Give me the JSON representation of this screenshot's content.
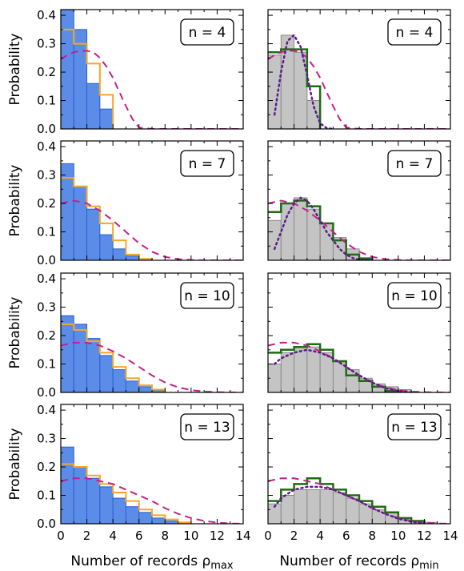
{
  "chart_data": [
    {
      "type": "bar",
      "panel": "max-n4",
      "label": "n = 4",
      "ylabel": "Probability",
      "xlabel": "",
      "xlim": [
        0,
        14
      ],
      "ylim": [
        0,
        0.42
      ],
      "bins": [
        0,
        1,
        2,
        3,
        4,
        5,
        6,
        7,
        8,
        9,
        10,
        11,
        12,
        13
      ],
      "histogram": [
        0.42,
        0.35,
        0.16,
        0.07,
        0,
        0,
        0,
        0,
        0,
        0,
        0,
        0,
        0,
        0
      ],
      "step_series": [
        0.35,
        0.3,
        0.23,
        0.12,
        0,
        0,
        0,
        0,
        0,
        0,
        0,
        0,
        0,
        0
      ],
      "dashed_curve": {
        "x": [
          0,
          0.5,
          1,
          1.5,
          2,
          2.5,
          3,
          3.5,
          4,
          4.5,
          5,
          5.5,
          6,
          7,
          8,
          10,
          12,
          14
        ],
        "y": [
          0.245,
          0.26,
          0.27,
          0.275,
          0.275,
          0.27,
          0.25,
          0.22,
          0.18,
          0.13,
          0.08,
          0.035,
          0.005,
          0,
          0,
          0,
          0,
          0
        ]
      }
    },
    {
      "type": "bar",
      "panel": "min-n4",
      "label": "n = 4",
      "xlim": [
        0,
        14
      ],
      "ylim": [
        0,
        0.42
      ],
      "bins": [
        0,
        1,
        2,
        3,
        4,
        5,
        6,
        7,
        8,
        9,
        10,
        11,
        12,
        13
      ],
      "histogram": [
        0.26,
        0.33,
        0.27,
        0.1,
        0,
        0,
        0,
        0,
        0,
        0,
        0,
        0,
        0,
        0
      ],
      "step_series": [
        0.27,
        0.28,
        0.28,
        0.15,
        0,
        0,
        0,
        0,
        0,
        0,
        0,
        0,
        0,
        0
      ],
      "dashed_curve": {
        "x": [
          0,
          0.5,
          1,
          1.5,
          2,
          2.5,
          3,
          3.5,
          4,
          4.5,
          5,
          5.5,
          6,
          7,
          8,
          10,
          12,
          14
        ],
        "y": [
          0.245,
          0.26,
          0.27,
          0.275,
          0.275,
          0.27,
          0.25,
          0.22,
          0.18,
          0.13,
          0.08,
          0.035,
          0.005,
          0,
          0,
          0,
          0,
          0
        ]
      },
      "dotted_curve": {
        "x": [
          0.5,
          1,
          1.5,
          2,
          2.5,
          3,
          3.5,
          4,
          4.5,
          5
        ],
        "y": [
          0.05,
          0.2,
          0.31,
          0.33,
          0.29,
          0.19,
          0.08,
          0.02,
          0.003,
          0
        ]
      }
    },
    {
      "type": "bar",
      "panel": "max-n7",
      "label": "n = 7",
      "ylabel": "Probability",
      "xlim": [
        0,
        14
      ],
      "ylim": [
        0,
        0.42
      ],
      "bins": [
        0,
        1,
        2,
        3,
        4,
        5,
        6,
        7,
        8,
        9,
        10,
        11,
        12,
        13
      ],
      "histogram": [
        0.34,
        0.26,
        0.18,
        0.09,
        0.04,
        0.015,
        0.005,
        0,
        0,
        0,
        0,
        0,
        0,
        0
      ],
      "step_series": [
        0.29,
        0.26,
        0.19,
        0.13,
        0.07,
        0.02,
        0.005,
        0,
        0,
        0,
        0,
        0,
        0,
        0
      ],
      "dashed_curve": {
        "x": [
          0,
          1,
          2,
          3,
          4,
          5,
          6,
          7,
          8,
          9,
          10,
          11,
          12,
          14
        ],
        "y": [
          0.2,
          0.21,
          0.2,
          0.175,
          0.14,
          0.1,
          0.06,
          0.03,
          0.012,
          0.004,
          0.001,
          0,
          0,
          0
        ]
      }
    },
    {
      "type": "bar",
      "panel": "min-n7",
      "label": "n = 7",
      "xlim": [
        0,
        14
      ],
      "ylim": [
        0,
        0.42
      ],
      "bins": [
        0,
        1,
        2,
        3,
        4,
        5,
        6,
        7,
        8,
        9,
        10,
        11,
        12,
        13
      ],
      "histogram": [
        0.14,
        0.2,
        0.22,
        0.18,
        0.13,
        0.08,
        0.04,
        0.01,
        0,
        0,
        0,
        0,
        0,
        0
      ],
      "step_series": [
        0.17,
        0.2,
        0.21,
        0.19,
        0.13,
        0.07,
        0.02,
        0.005,
        0,
        0,
        0,
        0,
        0,
        0
      ],
      "dashed_curve": {
        "x": [
          0,
          1,
          2,
          3,
          4,
          5,
          6,
          7,
          8,
          9,
          10,
          11,
          12,
          14
        ],
        "y": [
          0.2,
          0.21,
          0.2,
          0.175,
          0.14,
          0.1,
          0.06,
          0.03,
          0.012,
          0.004,
          0.001,
          0,
          0,
          0
        ]
      },
      "dotted_curve": {
        "x": [
          0.5,
          1,
          1.5,
          2,
          2.5,
          3,
          3.5,
          4,
          4.5,
          5,
          5.5,
          6,
          6.5,
          7,
          8
        ],
        "y": [
          0.04,
          0.1,
          0.16,
          0.2,
          0.22,
          0.21,
          0.18,
          0.14,
          0.1,
          0.07,
          0.04,
          0.02,
          0.008,
          0.002,
          0
        ]
      }
    },
    {
      "type": "bar",
      "panel": "max-n10",
      "label": "n = 10",
      "ylabel": "Probability",
      "xlim": [
        0,
        14
      ],
      "ylim": [
        0,
        0.42
      ],
      "bins": [
        0,
        1,
        2,
        3,
        4,
        5,
        6,
        7,
        8,
        9,
        10,
        11,
        12,
        13
      ],
      "histogram": [
        0.27,
        0.24,
        0.19,
        0.13,
        0.08,
        0.04,
        0.02,
        0.008,
        0,
        0,
        0,
        0,
        0,
        0
      ],
      "step_series": [
        0.24,
        0.22,
        0.18,
        0.14,
        0.09,
        0.05,
        0.025,
        0.01,
        0,
        0,
        0,
        0,
        0,
        0
      ],
      "dashed_curve": {
        "x": [
          0,
          1,
          2,
          3,
          4,
          5,
          6,
          7,
          8,
          9,
          10,
          11,
          12,
          13,
          14
        ],
        "y": [
          0.165,
          0.175,
          0.175,
          0.165,
          0.145,
          0.12,
          0.09,
          0.06,
          0.035,
          0.018,
          0.008,
          0.003,
          0.001,
          0,
          0
        ]
      }
    },
    {
      "type": "bar",
      "panel": "min-n10",
      "label": "n = 10",
      "xlim": [
        0,
        14
      ],
      "ylim": [
        0,
        0.42
      ],
      "bins": [
        0,
        1,
        2,
        3,
        4,
        5,
        6,
        7,
        8,
        9,
        10,
        11,
        12,
        13
      ],
      "histogram": [
        0.1,
        0.14,
        0.16,
        0.16,
        0.14,
        0.11,
        0.08,
        0.05,
        0.03,
        0.02,
        0.01,
        0,
        0,
        0
      ],
      "step_series": [
        0.14,
        0.15,
        0.16,
        0.17,
        0.15,
        0.11,
        0.06,
        0.04,
        0.02,
        0.005,
        0,
        0,
        0,
        0
      ],
      "dashed_curve": {
        "x": [
          0,
          1,
          2,
          3,
          4,
          5,
          6,
          7,
          8,
          9,
          10,
          11,
          12,
          13,
          14
        ],
        "y": [
          0.165,
          0.175,
          0.175,
          0.165,
          0.145,
          0.12,
          0.09,
          0.06,
          0.035,
          0.018,
          0.008,
          0.003,
          0.001,
          0,
          0
        ]
      },
      "dotted_curve": {
        "x": [
          0.5,
          1,
          2,
          3,
          4,
          5,
          6,
          7,
          8,
          9,
          10,
          11
        ],
        "y": [
          0.1,
          0.12,
          0.14,
          0.15,
          0.14,
          0.12,
          0.09,
          0.06,
          0.035,
          0.015,
          0.005,
          0
        ]
      }
    },
    {
      "type": "bar",
      "panel": "max-n13",
      "label": "n = 13",
      "ylabel": "Probability",
      "xlabel": "Number of records ρ",
      "xlabel_subscript": "max",
      "xlim": [
        0,
        14
      ],
      "ylim": [
        0,
        0.42
      ],
      "xticks": [
        0,
        2,
        4,
        6,
        8,
        10,
        12,
        14
      ],
      "bins": [
        0,
        1,
        2,
        3,
        4,
        5,
        6,
        7,
        8,
        9,
        10,
        11,
        12,
        13
      ],
      "histogram": [
        0.27,
        0.2,
        0.16,
        0.13,
        0.09,
        0.06,
        0.04,
        0.02,
        0.01,
        0.005,
        0,
        0,
        0,
        0
      ],
      "step_series": [
        0.21,
        0.2,
        0.17,
        0.14,
        0.11,
        0.08,
        0.05,
        0.03,
        0.015,
        0.005,
        0,
        0,
        0,
        0
      ],
      "dashed_curve": {
        "x": [
          0,
          1,
          2,
          3,
          4,
          5,
          6,
          7,
          8,
          9,
          10,
          11,
          12,
          13,
          14
        ],
        "y": [
          0.15,
          0.16,
          0.16,
          0.15,
          0.14,
          0.12,
          0.1,
          0.08,
          0.055,
          0.035,
          0.02,
          0.01,
          0.004,
          0.001,
          0
        ]
      }
    },
    {
      "type": "bar",
      "panel": "min-n13",
      "label": "n = 13",
      "xlabel": "Number of records ρ",
      "xlabel_subscript": "min",
      "xlim": [
        0,
        14
      ],
      "ylim": [
        0,
        0.42
      ],
      "xticks": [
        0,
        2,
        4,
        6,
        8,
        10,
        12,
        14
      ],
      "bins": [
        0,
        1,
        2,
        3,
        4,
        5,
        6,
        7,
        8,
        9,
        10,
        11,
        12,
        13
      ],
      "histogram": [
        0.07,
        0.1,
        0.12,
        0.12,
        0.12,
        0.11,
        0.09,
        0.07,
        0.05,
        0.04,
        0.02,
        0.01,
        0.005,
        0
      ],
      "step_series": [
        0.08,
        0.12,
        0.14,
        0.16,
        0.14,
        0.12,
        0.1,
        0.08,
        0.06,
        0.04,
        0.02,
        0.01,
        0,
        0
      ],
      "dashed_curve": {
        "x": [
          0,
          1,
          2,
          3,
          4,
          5,
          6,
          7,
          8,
          9,
          10,
          11,
          12,
          13,
          14
        ],
        "y": [
          0.15,
          0.16,
          0.16,
          0.15,
          0.14,
          0.12,
          0.1,
          0.08,
          0.055,
          0.035,
          0.02,
          0.01,
          0.004,
          0.001,
          0
        ]
      },
      "dotted_curve": {
        "x": [
          0.5,
          1,
          2,
          3,
          4,
          5,
          6,
          7,
          8,
          9,
          10,
          11,
          12
        ],
        "y": [
          0.06,
          0.09,
          0.12,
          0.13,
          0.13,
          0.12,
          0.1,
          0.08,
          0.055,
          0.035,
          0.018,
          0.007,
          0.002
        ]
      }
    }
  ],
  "y_ticks": [
    "0.0",
    "0.1",
    "0.2",
    "0.3",
    "0.4"
  ],
  "y_tick_values": [
    0,
    0.1,
    0.2,
    0.3,
    0.4
  ],
  "colors": {
    "max_bars_fill": "#5b8de8",
    "max_bars_edge": "#2a5fd0",
    "min_bars_fill": "#c4c4c4",
    "min_bars_edge": "#8a8a8a",
    "max_step": "#f5a623",
    "min_step": "#1e6b12",
    "dashed": "#c41f8c",
    "dotted": "#5a1d8a"
  }
}
